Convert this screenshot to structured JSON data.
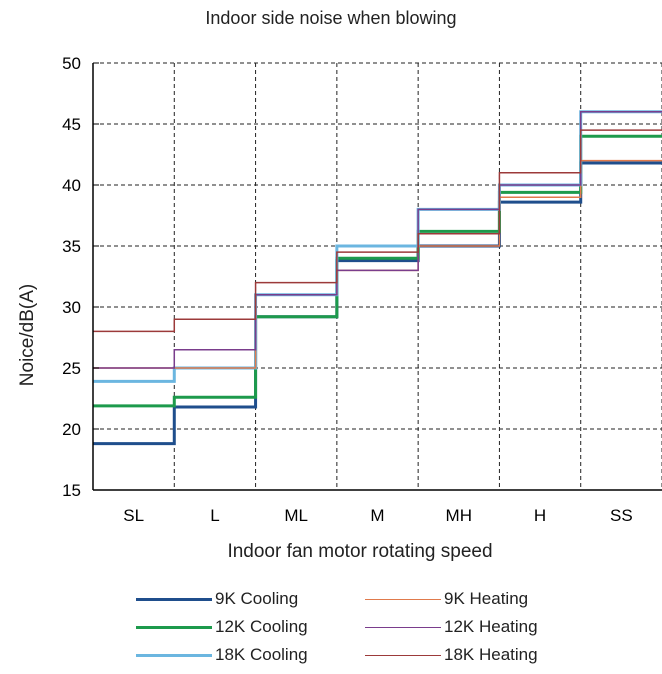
{
  "chart_data": {
    "type": "line",
    "step": true,
    "title": "Indoor side noise when blowing",
    "xlabel": "Indoor fan motor rotating speed",
    "ylabel": "Noice/dB(A)",
    "categories": [
      "SL",
      "L",
      "ML",
      "M",
      "MH",
      "H",
      "SS"
    ],
    "ylim": [
      15,
      50
    ],
    "yticks": [
      15,
      20,
      25,
      30,
      35,
      40,
      45,
      50
    ],
    "grid": true,
    "grid_style": "dashed",
    "legend_position": "bottom",
    "series": [
      {
        "name": "9K Cooling",
        "color": "#1f4e8c",
        "line_width": 3,
        "values": [
          18.8,
          21.8,
          29.2,
          33.8,
          35.0,
          38.6,
          41.8
        ]
      },
      {
        "name": "12K Cooling",
        "color": "#1d9a4c",
        "line_width": 3,
        "values": [
          21.9,
          22.6,
          29.2,
          34.0,
          36.2,
          39.4,
          44.0
        ]
      },
      {
        "name": "18K Cooling",
        "color": "#6bb6e0",
        "line_width": 3,
        "values": [
          23.9,
          25.0,
          31.0,
          35.0,
          38.0,
          40.0,
          46.0
        ]
      },
      {
        "name": "9K Heating",
        "color": "#e07a4c",
        "line_width": 1.5,
        "values": [
          25.0,
          25.0,
          31.0,
          33.0,
          35.0,
          39.0,
          42.0
        ]
      },
      {
        "name": "12K Heating",
        "color": "#7a3d8c",
        "line_width": 1.5,
        "values": [
          25.0,
          26.5,
          31.0,
          33.0,
          38.0,
          40.0,
          46.0
        ]
      },
      {
        "name": "18K Heating",
        "color": "#9c3a3a",
        "line_width": 1.5,
        "values": [
          28.0,
          29.0,
          32.0,
          34.5,
          36.0,
          41.0,
          44.5
        ]
      }
    ]
  }
}
